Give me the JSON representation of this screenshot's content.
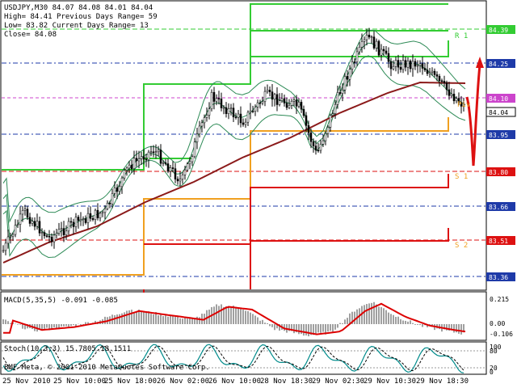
{
  "header": {
    "line1": "USDJPY,M30  84.07 84.08 84.01 84.04",
    "line2": "High= 84.41   Previous Days Range= 59",
    "line3": "Low= 83.82    Current Days Range= 13",
    "line4": "Close= 84.08"
  },
  "price_axis": {
    "labels": [
      "84.39",
      "84.25",
      "84.10",
      "84.04",
      "83.95",
      "83.80",
      "83.66",
      "83.51",
      "83.36"
    ],
    "current": "84.04"
  },
  "pivot_labels": {
    "r1": "R 1",
    "pivot": "Piv",
    "s1": "S 1",
    "s2": "S 2"
  },
  "macd": {
    "label": "MACD(5,35,5) -0.091 -0.085",
    "axis": [
      "0.215",
      "0.00",
      "-0.106"
    ]
  },
  "stoch": {
    "label": "Stoch(10,3,3) 15.7805 18.1511",
    "axis": [
      "100",
      "80",
      "20",
      "0"
    ]
  },
  "copyright": "BMF-Meta, © 2001-2010 MetaQuotes Software Corp.",
  "time_axis": [
    "25 Nov 2010",
    "25 Nov 10:00",
    "25 Nov 18:00",
    "26 Nov 02:00",
    "26 Nov 10:00",
    "28 Nov 18:30",
    "29 Nov 02:30",
    "29 Nov 10:30",
    "29 Nov 18:30"
  ],
  "colors": {
    "bg": "#ffffff",
    "candle": "#000000",
    "bands": "#2e8b57",
    "ma": "#8b1a1a",
    "resist": "#33cc33",
    "support": "#dd1111",
    "pivot": "#f0a020",
    "macd_signal": "#dd0000",
    "hist": "#a0a0a0",
    "stoch_main": "#008b8b"
  }
}
